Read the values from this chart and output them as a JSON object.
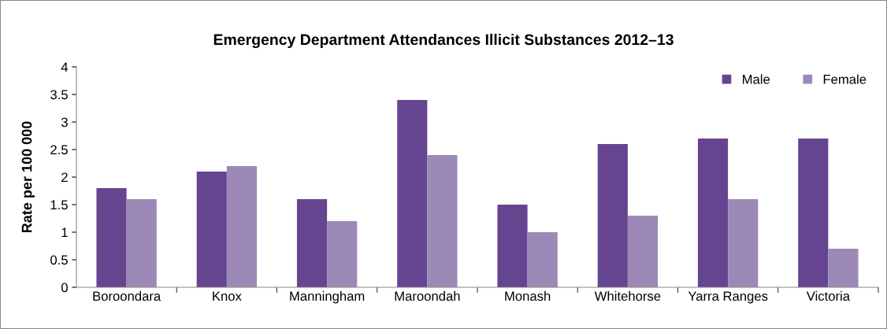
{
  "chart_data": {
    "type": "bar",
    "title": "Emergency Department Attendances Illicit Substances 2012–13",
    "ylabel": "Rate per 100 000",
    "categories": [
      "Boroondara",
      "Knox",
      "Manningham",
      "Maroondah",
      "Monash",
      "Whitehorse",
      "Yarra Ranges",
      "Victoria"
    ],
    "series": [
      {
        "name": "Male",
        "color": "#654590",
        "values": [
          1.8,
          2.1,
          1.6,
          3.4,
          1.5,
          2.6,
          2.7,
          2.7
        ]
      },
      {
        "name": "Female",
        "color": "#9c89b8",
        "values": [
          1.6,
          2.2,
          1.2,
          2.4,
          1.0,
          1.3,
          1.6,
          0.7
        ]
      }
    ],
    "ylim": [
      0,
      4
    ],
    "yticks": [
      0,
      0.5,
      1,
      1.5,
      2,
      2.5,
      3,
      3.5,
      4
    ],
    "grid": false,
    "legend": "top right"
  }
}
